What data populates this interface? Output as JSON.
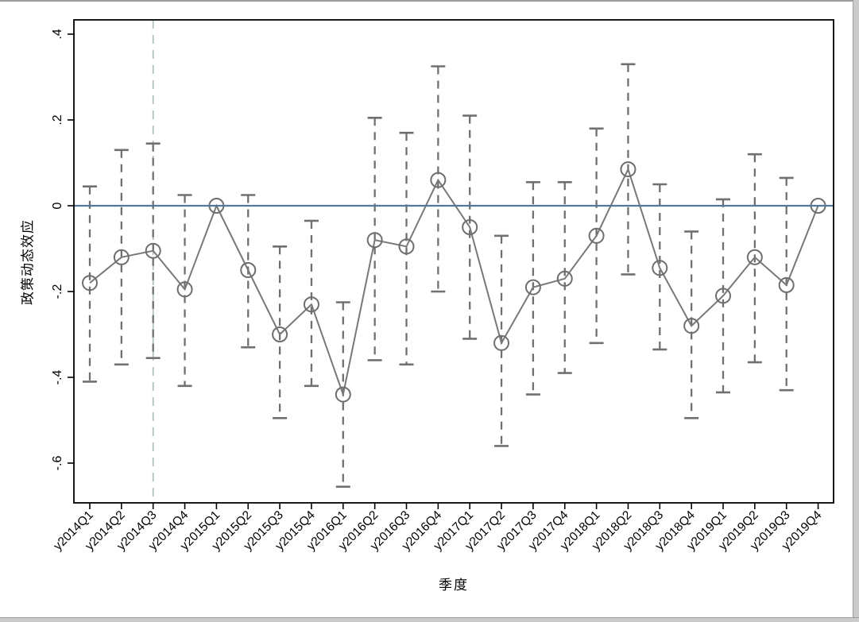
{
  "window": {
    "frame_line_color": "#9e9e9e",
    "frame_fill_color": "#cbcbcb",
    "background": "#ffffff"
  },
  "chart_data": {
    "type": "line",
    "subtype": "coefficient-plot-with-confidence-intervals",
    "title": "",
    "xlabel": "季度",
    "ylabel": "政策动态效应",
    "grid": false,
    "legend": "none",
    "categories": [
      "y2014Q1",
      "y2014Q2",
      "y2014Q3",
      "y2014Q4",
      "y2015Q1",
      "y2015Q2",
      "y2015Q3",
      "y2015Q4",
      "y2016Q1",
      "y2016Q2",
      "y2016Q3",
      "y2016Q4",
      "y2017Q1",
      "y2017Q2",
      "y2017Q3",
      "y2017Q4",
      "y2018Q1",
      "y2018Q2",
      "y2018Q3",
      "y2018Q4",
      "y2019Q1",
      "y2019Q2",
      "y2019Q3",
      "y2019Q4"
    ],
    "y_axis": {
      "ticks": [
        0.4,
        0.2,
        0,
        -0.2,
        -0.4,
        -0.6
      ],
      "tick_labels": [
        ".4",
        ".2",
        "0",
        "-.2",
        "-.4",
        "-.6"
      ],
      "ylim": [
        -0.69,
        0.43
      ]
    },
    "reference_hline_y": 0,
    "reference_vline_category": "y2014Q3",
    "series": [
      {
        "name": "政策动态效应",
        "marker": "open-circle",
        "values": [
          -0.18,
          -0.12,
          -0.105,
          -0.195,
          0,
          -0.15,
          -0.3,
          -0.23,
          -0.44,
          -0.08,
          -0.095,
          0.06,
          -0.05,
          -0.32,
          -0.19,
          -0.17,
          -0.07,
          0.085,
          -0.145,
          -0.28,
          -0.21,
          -0.12,
          -0.185,
          0
        ],
        "ci_high": [
          0.045,
          0.13,
          0.145,
          0.025,
          null,
          0.025,
          -0.095,
          -0.035,
          -0.225,
          0.205,
          0.17,
          0.325,
          0.21,
          -0.07,
          0.055,
          0.055,
          0.18,
          0.33,
          0.05,
          -0.06,
          0.015,
          0.12,
          0.065,
          null
        ],
        "ci_low": [
          -0.41,
          -0.37,
          -0.355,
          -0.42,
          null,
          -0.33,
          -0.495,
          -0.42,
          -0.655,
          -0.36,
          -0.37,
          -0.2,
          -0.31,
          -0.56,
          -0.44,
          -0.39,
          -0.32,
          -0.16,
          -0.335,
          -0.495,
          -0.435,
          -0.365,
          -0.43,
          null
        ]
      }
    ],
    "colors": {
      "series_line": "#787878",
      "marker_stroke": "#6e6e6e",
      "ci_line": "#707070",
      "zero_line": "#56789a",
      "treatment_vline": "#a9bdb2",
      "axis": "#000000",
      "tick_label": "#000000"
    }
  }
}
